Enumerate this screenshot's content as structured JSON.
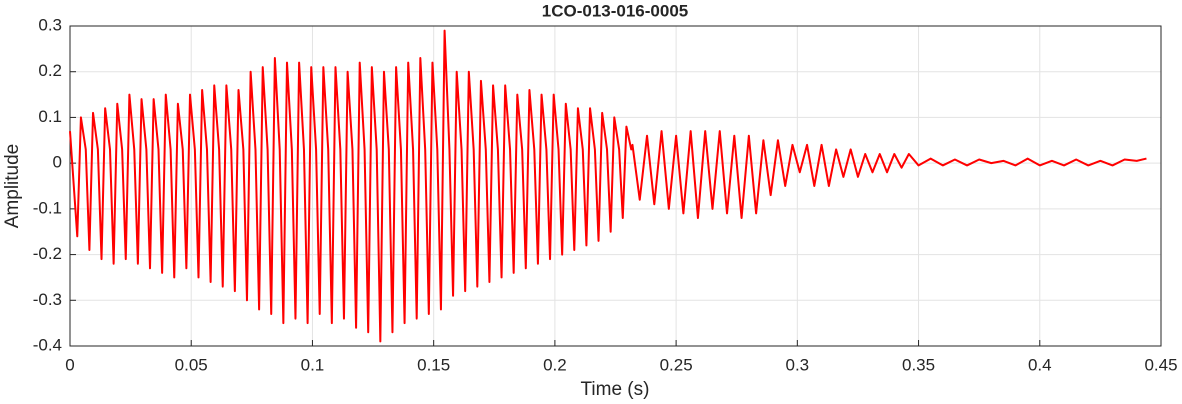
{
  "chart_data": {
    "type": "line",
    "title": "1CO-013-016-0005",
    "xlabel": "Time (s)",
    "ylabel": "Amplitude",
    "x": [
      0,
      0.003,
      0.0045,
      0.0065,
      0.008,
      0.0095,
      0.0115,
      0.013,
      0.0145,
      0.0165,
      0.018,
      0.0195,
      0.0215,
      0.023,
      0.0245,
      0.0265,
      0.028,
      0.0295,
      0.0315,
      0.033,
      0.0345,
      0.0365,
      0.038,
      0.0395,
      0.0415,
      0.043,
      0.0445,
      0.0465,
      0.048,
      0.0495,
      0.0515,
      0.053,
      0.0545,
      0.0565,
      0.058,
      0.0595,
      0.0615,
      0.063,
      0.0645,
      0.0665,
      0.068,
      0.0695,
      0.0715,
      0.073,
      0.0745,
      0.0765,
      0.078,
      0.0795,
      0.0815,
      0.083,
      0.0845,
      0.0865,
      0.088,
      0.0895,
      0.0915,
      0.093,
      0.0945,
      0.0965,
      0.098,
      0.0995,
      0.1015,
      0.103,
      0.1045,
      0.1065,
      0.108,
      0.1095,
      0.1115,
      0.113,
      0.1145,
      0.1165,
      0.118,
      0.1195,
      0.1215,
      0.123,
      0.1245,
      0.1265,
      0.128,
      0.1295,
      0.1315,
      0.133,
      0.1345,
      0.1365,
      0.138,
      0.1395,
      0.1415,
      0.143,
      0.1445,
      0.1465,
      0.148,
      0.1495,
      0.1515,
      0.153,
      0.1545,
      0.1565,
      0.158,
      0.1595,
      0.1615,
      0.163,
      0.1645,
      0.1665,
      0.168,
      0.1695,
      0.1715,
      0.173,
      0.1745,
      0.1765,
      0.178,
      0.1795,
      0.1815,
      0.183,
      0.1845,
      0.1865,
      0.188,
      0.1895,
      0.1915,
      0.193,
      0.1945,
      0.1965,
      0.198,
      0.1995,
      0.2015,
      0.203,
      0.2045,
      0.2065,
      0.208,
      0.2095,
      0.2115,
      0.213,
      0.2145,
      0.2165,
      0.218,
      0.2195,
      0.2215,
      0.223,
      0.2245,
      0.2265,
      0.228,
      0.2295,
      0.2315,
      0.232,
      0.235,
      0.238,
      0.241,
      0.244,
      0.247,
      0.25,
      0.253,
      0.256,
      0.259,
      0.262,
      0.265,
      0.268,
      0.271,
      0.274,
      0.277,
      0.28,
      0.283,
      0.286,
      0.289,
      0.292,
      0.295,
      0.298,
      0.301,
      0.304,
      0.307,
      0.31,
      0.313,
      0.316,
      0.319,
      0.322,
      0.325,
      0.328,
      0.331,
      0.334,
      0.337,
      0.34,
      0.343,
      0.346,
      0.35,
      0.355,
      0.36,
      0.365,
      0.37,
      0.375,
      0.38,
      0.385,
      0.39,
      0.395,
      0.4,
      0.405,
      0.41,
      0.415,
      0.42,
      0.425,
      0.43,
      0.435,
      0.44,
      0.444
    ],
    "series": [
      {
        "name": "Amplitude",
        "color": "#ff0000",
        "values": [
          0.07,
          -0.16,
          0.1,
          0.03,
          -0.19,
          0.11,
          0.03,
          -0.21,
          0.12,
          0.03,
          -0.22,
          0.13,
          0.03,
          -0.21,
          0.15,
          0.03,
          -0.22,
          0.14,
          0.03,
          -0.23,
          0.14,
          0.03,
          -0.24,
          0.15,
          0.03,
          -0.25,
          0.13,
          0.03,
          -0.23,
          0.15,
          0.03,
          -0.25,
          0.16,
          0.03,
          -0.26,
          0.17,
          0.03,
          -0.27,
          0.17,
          0.03,
          -0.28,
          0.16,
          0.03,
          -0.3,
          0.2,
          0.03,
          -0.32,
          0.21,
          0.03,
          -0.33,
          0.23,
          0.03,
          -0.35,
          0.22,
          0.03,
          -0.34,
          0.22,
          0.03,
          -0.35,
          0.21,
          0.03,
          -0.33,
          0.21,
          0.03,
          -0.35,
          0.21,
          0.03,
          -0.34,
          0.2,
          0.03,
          -0.36,
          0.22,
          0.03,
          -0.37,
          0.21,
          0.03,
          -0.39,
          0.2,
          0.03,
          -0.37,
          0.21,
          0.03,
          -0.35,
          0.22,
          0.03,
          -0.34,
          0.23,
          0.03,
          -0.33,
          0.22,
          0.03,
          -0.32,
          0.29,
          0.03,
          -0.29,
          0.2,
          0.03,
          -0.28,
          0.2,
          0.03,
          -0.27,
          0.18,
          0.03,
          -0.26,
          0.17,
          0.03,
          -0.25,
          0.17,
          0.03,
          -0.24,
          0.15,
          0.03,
          -0.23,
          0.16,
          0.03,
          -0.22,
          0.15,
          0.03,
          -0.21,
          0.15,
          0.03,
          -0.2,
          0.13,
          0.03,
          -0.19,
          0.12,
          0.03,
          -0.18,
          0.12,
          0.03,
          -0.17,
          0.11,
          0.03,
          -0.15,
          0.1,
          0.03,
          -0.12,
          0.08,
          0.03,
          0.04,
          -0.08,
          0.06,
          -0.09,
          0.07,
          -0.1,
          0.06,
          -0.11,
          0.07,
          -0.12,
          0.07,
          -0.1,
          0.07,
          -0.11,
          0.06,
          -0.12,
          0.06,
          -0.11,
          0.05,
          -0.07,
          0.05,
          -0.05,
          0.04,
          -0.02,
          0.04,
          -0.05,
          0.04,
          -0.05,
          0.03,
          -0.03,
          0.03,
          -0.03,
          0.02,
          -0.02,
          0.02,
          -0.02,
          0.02,
          -0.01,
          0.02,
          -0.005,
          0.01,
          -0.005,
          0.008,
          -0.005,
          0.008,
          0,
          0.005,
          -0.005,
          0.01,
          -0.005,
          0.005,
          -0.005,
          0.008,
          -0.005,
          0.005,
          -0.005,
          0.008,
          0.005,
          0.01
        ]
      }
    ],
    "xlim": [
      0,
      0.45
    ],
    "xticks": [
      0,
      0.05,
      0.1,
      0.15,
      0.2,
      0.25,
      0.3,
      0.35,
      0.4,
      0.45
    ],
    "ylim": [
      -0.4,
      0.3
    ],
    "yticks": [
      -0.4,
      -0.3,
      -0.2,
      -0.1,
      0,
      0.1,
      0.2,
      0.3
    ],
    "grid": true
  }
}
